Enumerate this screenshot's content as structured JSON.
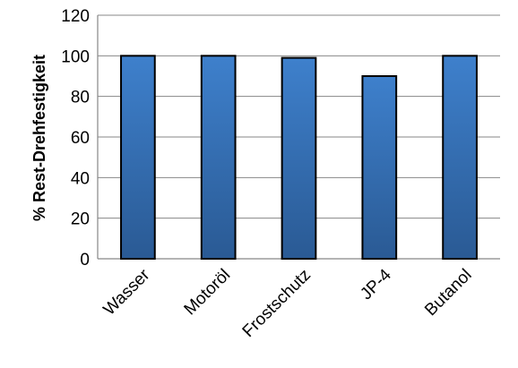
{
  "chart_data": {
    "type": "bar",
    "title": "",
    "xlabel": "",
    "ylabel": "% Rest-Drehfestigkeit",
    "categories": [
      "Wasser",
      "Motoröl",
      "Frostschutz",
      "JP-4",
      "Butanol"
    ],
    "values": [
      100,
      100,
      99,
      90,
      100
    ],
    "ylim": [
      0,
      120
    ],
    "yticks": [
      0,
      20,
      40,
      60,
      80,
      100,
      120
    ],
    "grid": true,
    "legend": "none",
    "colors": {
      "bar_top": "#3e80cc",
      "bar_bottom": "#2a5a94",
      "bar_border": "#000000",
      "grid": "#878787"
    }
  }
}
